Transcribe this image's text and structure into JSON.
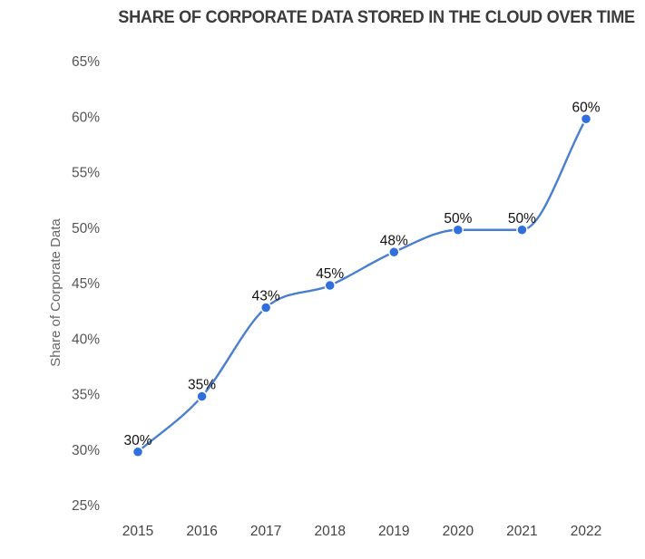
{
  "chart_data": {
    "type": "line",
    "title": "SHARE OF CORPORATE DATA STORED IN THE CLOUD OVER TIME",
    "xlabel": "",
    "ylabel": "Share of Corporate Data",
    "categories": [
      "2015",
      "2016",
      "2017",
      "2018",
      "2019",
      "2020",
      "2021",
      "2022"
    ],
    "series": [
      {
        "name": "Share of Corporate Data",
        "values": [
          30,
          35,
          43,
          45,
          48,
          50,
          50,
          60
        ],
        "labels": [
          "30%",
          "35%",
          "43%",
          "45%",
          "48%",
          "50%",
          "50%",
          "60%"
        ],
        "color": "#4a7fd0",
        "marker_color": "#2f6fde",
        "smooth": true
      }
    ],
    "ylim": [
      25,
      65
    ],
    "yticks": [
      25,
      30,
      35,
      40,
      45,
      50,
      55,
      60,
      65
    ],
    "ytick_labels": [
      "25%",
      "30%",
      "35%",
      "40%",
      "45%",
      "50%",
      "55%",
      "60%",
      "65%"
    ],
    "grid": false,
    "legend": "none"
  }
}
